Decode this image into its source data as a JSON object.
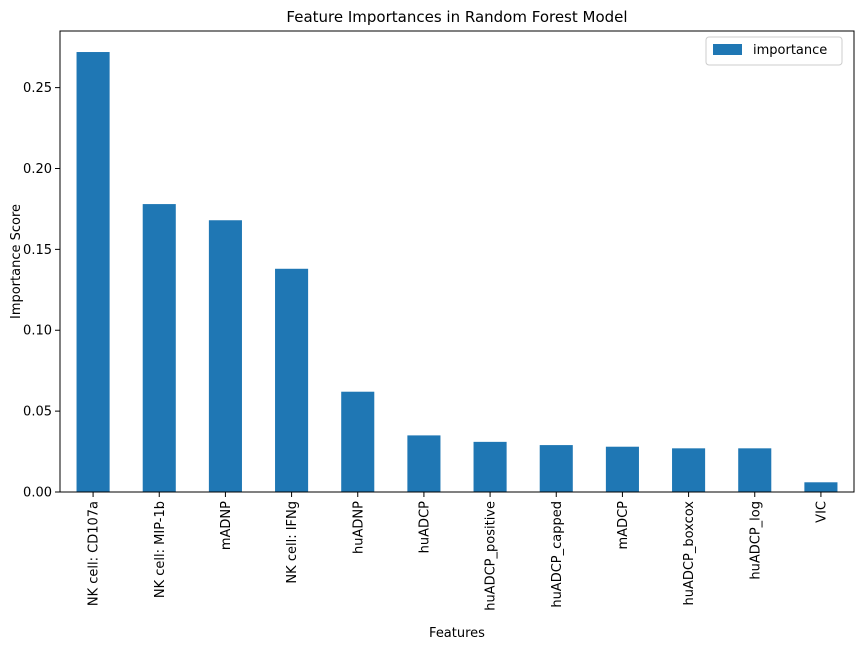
{
  "chart_data": {
    "type": "bar",
    "title": "Feature Importances in Random Forest Model",
    "xlabel": "Features",
    "ylabel": "Importance Score",
    "categories": [
      "NK cell: CD107a",
      "NK cell: MIP-1b",
      "mADNP",
      "NK cell: IFNg",
      "huADNP",
      "huADCP",
      "huADCP_positive",
      "huADCP_capped",
      "mADCP",
      "huADCP_boxcox",
      "huADCP_log",
      "VIC"
    ],
    "series": [
      {
        "name": "importance",
        "values": [
          0.272,
          0.178,
          0.168,
          0.138,
          0.062,
          0.035,
          0.031,
          0.029,
          0.028,
          0.027,
          0.027,
          0.006
        ],
        "color": "#1f77b4"
      }
    ],
    "ylim": [
      0,
      0.285
    ],
    "yticks": [
      0.0,
      0.05,
      0.1,
      0.15,
      0.2,
      0.25
    ],
    "ytick_labels": [
      "0.00",
      "0.05",
      "0.10",
      "0.15",
      "0.20",
      "0.25"
    ],
    "grid": false,
    "legend_position": "top-right"
  }
}
